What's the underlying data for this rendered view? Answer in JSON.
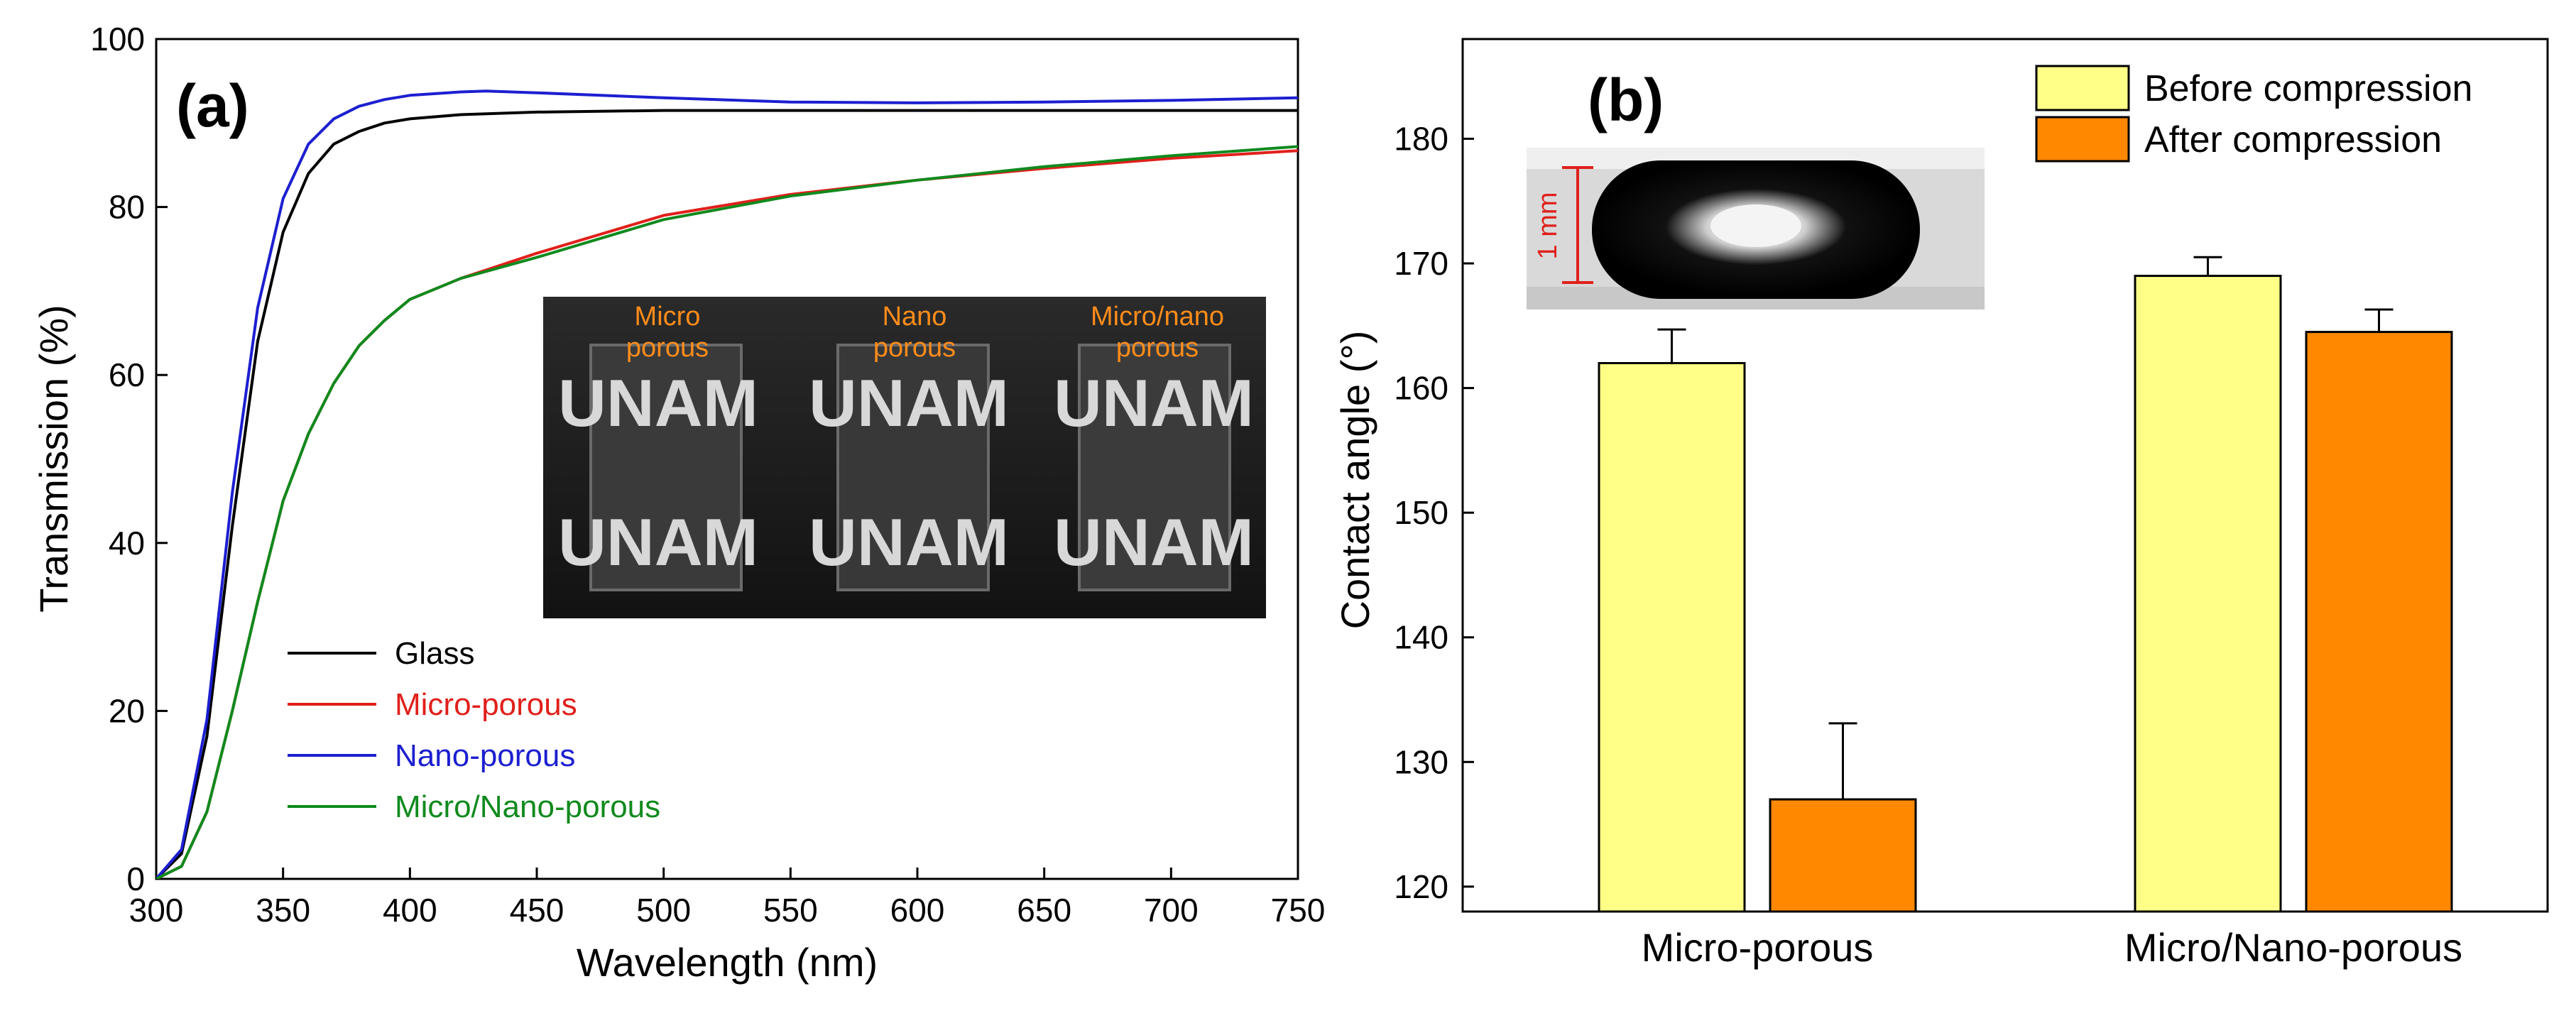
{
  "colors": {
    "glass": "#000000",
    "micro": "#e0201b",
    "nano": "#1c1fd0",
    "micronano": "#0f8a1d",
    "before": "#ffff88",
    "after": "#ff8800",
    "photo_caption": "#ff8c1a"
  },
  "chart_data": [
    {
      "panel": "(a)",
      "type": "line",
      "xlabel": "Wavelength (nm)",
      "ylabel": "Transmission (%)",
      "xlim": [
        300,
        750
      ],
      "ylim": [
        0,
        100
      ],
      "xticks": [
        300,
        350,
        400,
        450,
        500,
        550,
        600,
        650,
        700,
        750
      ],
      "yticks": [
        0,
        20,
        40,
        60,
        80,
        100
      ],
      "legend_position": "bottom-left",
      "series": [
        {
          "name": "Glass",
          "color_key": "glass",
          "x": [
            300,
            310,
            320,
            330,
            340,
            350,
            360,
            370,
            380,
            390,
            400,
            420,
            450,
            500,
            550,
            600,
            650,
            700,
            750
          ],
          "y": [
            0,
            3,
            17,
            42,
            64,
            77,
            84,
            87.5,
            89,
            90,
            90.5,
            91,
            91.3,
            91.5,
            91.5,
            91.5,
            91.5,
            91.5,
            91.5
          ]
        },
        {
          "name": "Micro-porous",
          "color_key": "micro",
          "x": [
            300,
            310,
            320,
            330,
            340,
            350,
            360,
            370,
            380,
            390,
            400,
            420,
            450,
            500,
            550,
            600,
            650,
            700,
            750
          ],
          "y": [
            0,
            1.5,
            8,
            20,
            33,
            45,
            53,
            59,
            63.5,
            66.5,
            69,
            71.5,
            74.5,
            79,
            81.5,
            83.2,
            84.6,
            85.8,
            86.7
          ]
        },
        {
          "name": "Nano-porous",
          "color_key": "nano",
          "x": [
            300,
            310,
            320,
            330,
            340,
            350,
            360,
            370,
            380,
            390,
            400,
            420,
            430,
            450,
            500,
            550,
            600,
            650,
            700,
            750
          ],
          "y": [
            0,
            3.5,
            19,
            46,
            68,
            81,
            87.5,
            90.5,
            92,
            92.8,
            93.3,
            93.7,
            93.8,
            93.6,
            93.0,
            92.5,
            92.4,
            92.5,
            92.7,
            93.0
          ]
        },
        {
          "name": "Micro/Nano-porous",
          "color_key": "micronano",
          "x": [
            300,
            310,
            320,
            330,
            340,
            350,
            360,
            370,
            380,
            390,
            400,
            420,
            450,
            500,
            550,
            600,
            650,
            700,
            750
          ],
          "y": [
            0,
            1.5,
            8,
            20,
            33,
            45,
            53,
            59,
            63.5,
            66.5,
            69,
            71.5,
            74,
            78.5,
            81.3,
            83.2,
            84.8,
            86.1,
            87.2
          ]
        }
      ],
      "inset_photo": {
        "labels": [
          "Micro\nporous",
          "Nano\nporous",
          "Micro/nano\nporous"
        ],
        "word": "UNAM"
      }
    },
    {
      "panel": "(b)",
      "type": "bar",
      "ylabel": "Contact angle (°)",
      "ylim": [
        118,
        188
      ],
      "yticks": [
        120,
        130,
        140,
        150,
        160,
        170,
        180
      ],
      "categories": [
        "Micro-porous",
        "Micro/Nano-porous"
      ],
      "legend_position": "top-right",
      "series": [
        {
          "name": "Before compression",
          "color_key": "before",
          "values": [
            162,
            169
          ],
          "errors": [
            2.7,
            1.5
          ]
        },
        {
          "name": "After compression",
          "color_key": "after",
          "values": [
            127,
            164.5
          ],
          "errors": [
            6.1,
            1.8
          ]
        }
      ],
      "inset_photo": {
        "scale_label": "1 mm"
      }
    }
  ]
}
